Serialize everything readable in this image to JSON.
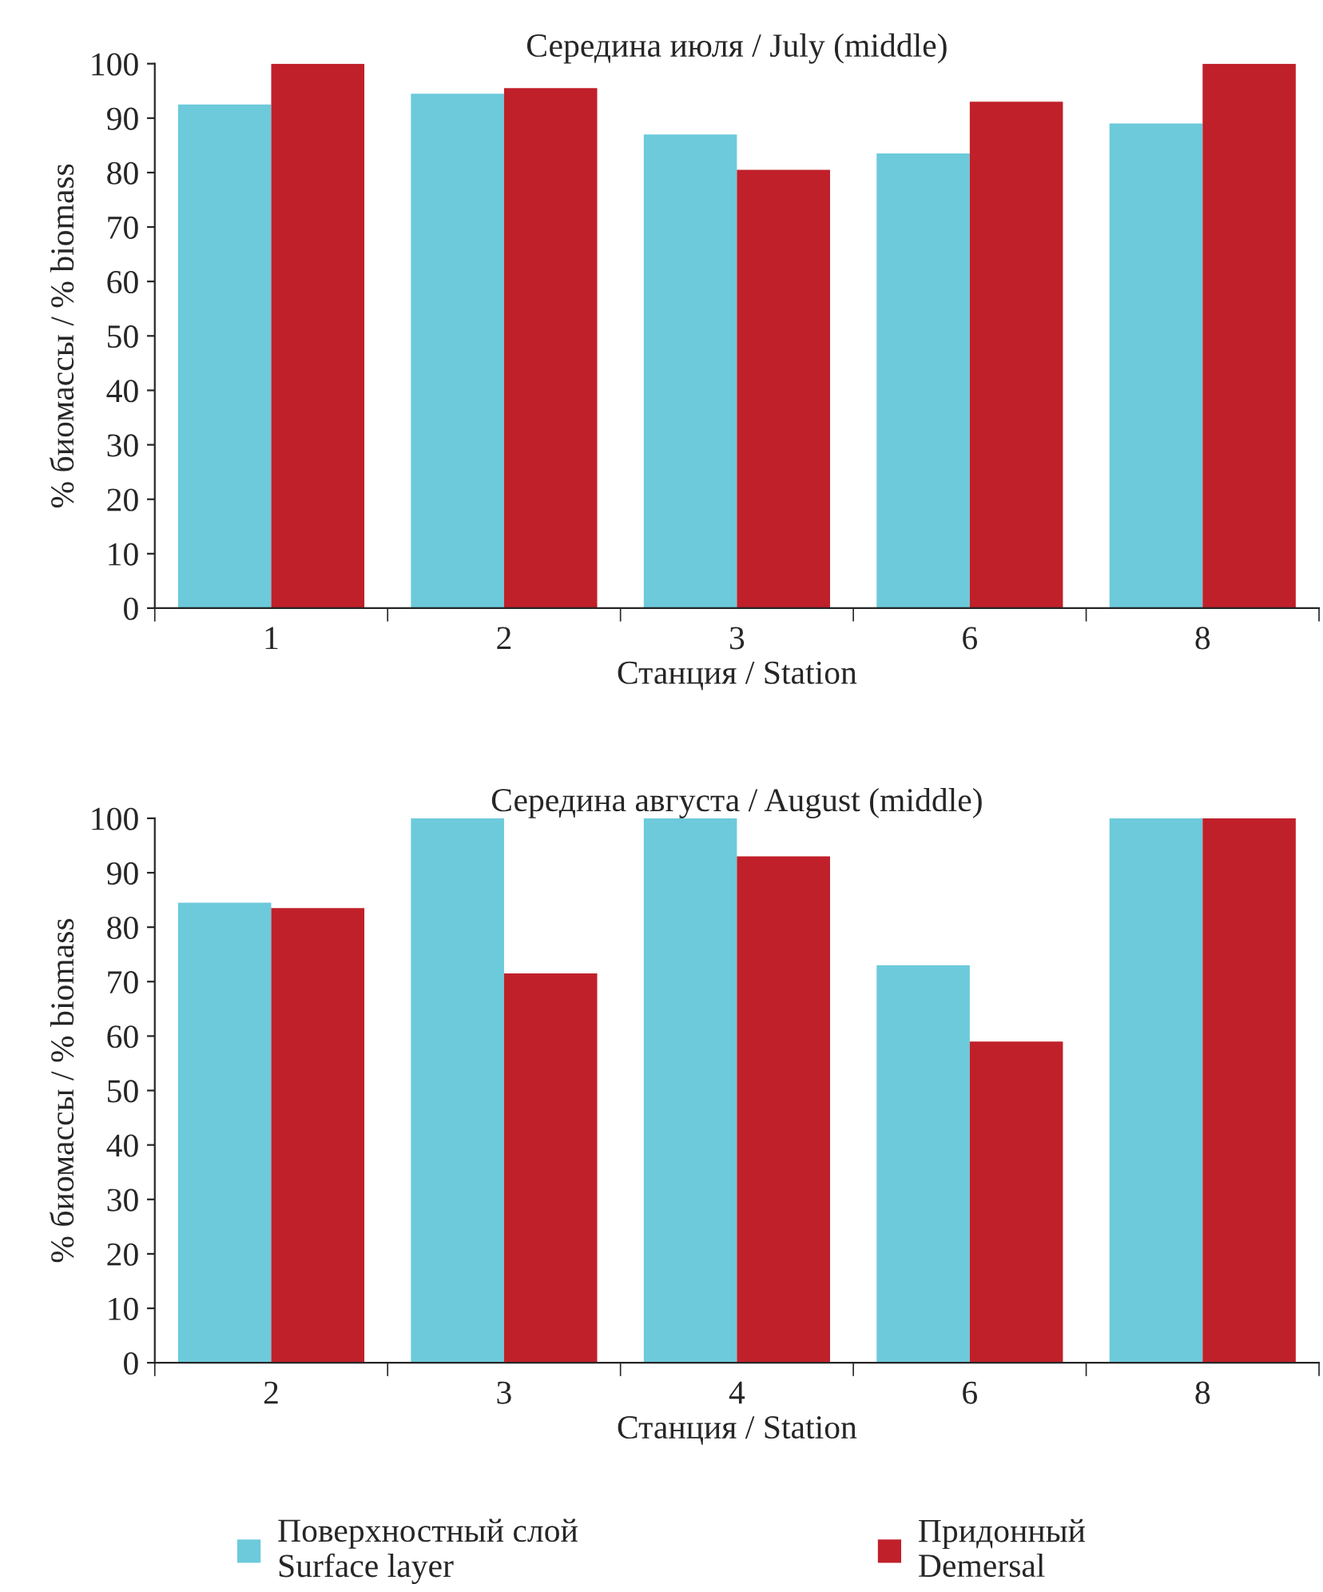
{
  "chart_data": [
    {
      "type": "bar",
      "title": "Середина июля / July (middle)",
      "xlabel": "Станция / Station",
      "ylabel": "% биомассы / % biomass",
      "categories": [
        "1",
        "2",
        "3",
        "6",
        "8"
      ],
      "ylim": [
        0,
        100
      ],
      "yticks": [
        0,
        10,
        20,
        30,
        40,
        50,
        60,
        70,
        80,
        90,
        100
      ],
      "grid": false,
      "series": [
        {
          "color": "#6ccadb",
          "values": [
            92.5,
            94.5,
            87,
            83.5,
            89
          ]
        },
        {
          "color": "#c0202a",
          "values": [
            100,
            95.5,
            80.5,
            93,
            100
          ]
        }
      ]
    },
    {
      "type": "bar",
      "title": "Середина августа / August (middle)",
      "xlabel": "Станция / Station",
      "ylabel": "% биомассы / % biomass",
      "categories": [
        "2",
        "3",
        "4",
        "6",
        "8"
      ],
      "ylim": [
        0,
        100
      ],
      "yticks": [
        0,
        10,
        20,
        30,
        40,
        50,
        60,
        70,
        80,
        90,
        100
      ],
      "grid": false,
      "legend": "bottom",
      "series": [
        {
          "name": "Поверхностный слой\nSurface layer",
          "color": "#6ccadb",
          "values": [
            84.5,
            100,
            100,
            73,
            100
          ]
        },
        {
          "name": "Придонный\nDemersal",
          "color": "#c0202a",
          "values": [
            83.5,
            71.5,
            93,
            59,
            100
          ]
        }
      ]
    }
  ]
}
